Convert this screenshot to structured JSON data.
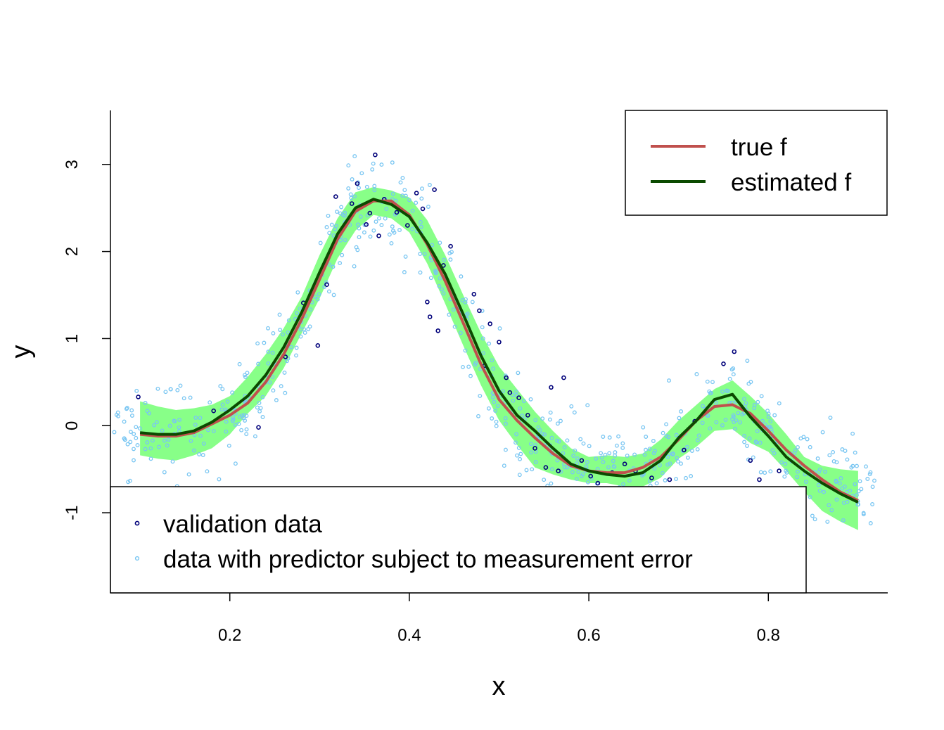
{
  "chart_data": {
    "type": "scatter",
    "xlabel": "x",
    "ylabel": "y",
    "xlim": [
      0.067,
      0.933
    ],
    "ylim": [
      -1.92,
      3.62
    ],
    "x_ticks": [
      {
        "v": 0.2,
        "label": "0.2"
      },
      {
        "v": 0.4,
        "label": "0.4"
      },
      {
        "v": 0.6,
        "label": "0.6"
      },
      {
        "v": 0.8,
        "label": "0.8"
      }
    ],
    "y_ticks": [
      {
        "v": -1,
        "label": "-1"
      },
      {
        "v": 0,
        "label": "0"
      },
      {
        "v": 1,
        "label": "1"
      },
      {
        "v": 2,
        "label": "2"
      },
      {
        "v": 3,
        "label": "3"
      }
    ],
    "colors": {
      "band": "#88FF88",
      "true_f": "#C0504D",
      "estimated_f": "#0B4A00",
      "validation": "#00007A",
      "error_data": "#79C6F2"
    },
    "legend_lines": {
      "position": "top-right",
      "items": [
        {
          "key": "true_f",
          "label": "true f"
        },
        {
          "key": "estimated_f",
          "label": "estimated f"
        }
      ]
    },
    "legend_points": {
      "position": "bottom-left",
      "items": [
        {
          "key": "validation",
          "label": "validation data"
        },
        {
          "key": "error_data",
          "label": "data with predictor subject to measurement error"
        }
      ]
    },
    "curve_x": [
      0.1,
      0.12,
      0.14,
      0.16,
      0.18,
      0.2,
      0.22,
      0.24,
      0.26,
      0.28,
      0.3,
      0.32,
      0.34,
      0.36,
      0.38,
      0.4,
      0.42,
      0.44,
      0.46,
      0.48,
      0.5,
      0.52,
      0.54,
      0.56,
      0.58,
      0.6,
      0.62,
      0.64,
      0.66,
      0.68,
      0.7,
      0.72,
      0.74,
      0.76,
      0.78,
      0.8,
      0.82,
      0.84,
      0.86,
      0.88,
      0.9
    ],
    "true_f": [
      -0.1,
      -0.12,
      -0.12,
      -0.08,
      0.02,
      0.12,
      0.26,
      0.5,
      0.82,
      1.22,
      1.68,
      2.14,
      2.46,
      2.58,
      2.58,
      2.42,
      2.08,
      1.66,
      1.18,
      0.7,
      0.3,
      0.06,
      -0.14,
      -0.32,
      -0.46,
      -0.52,
      -0.54,
      -0.54,
      -0.48,
      -0.36,
      -0.16,
      0.06,
      0.22,
      0.24,
      0.14,
      -0.06,
      -0.28,
      -0.46,
      -0.62,
      -0.76,
      -0.86
    ],
    "estimated_f": [
      -0.08,
      -0.1,
      -0.1,
      -0.06,
      0.04,
      0.18,
      0.34,
      0.58,
      0.9,
      1.3,
      1.76,
      2.2,
      2.5,
      2.6,
      2.54,
      2.4,
      2.1,
      1.74,
      1.28,
      0.8,
      0.4,
      0.12,
      -0.06,
      -0.26,
      -0.44,
      -0.52,
      -0.56,
      -0.58,
      -0.54,
      -0.4,
      -0.14,
      0.06,
      0.3,
      0.36,
      0.1,
      -0.12,
      -0.36,
      -0.52,
      -0.66,
      -0.78,
      -0.88
    ],
    "band_upper": [
      0.28,
      0.22,
      0.18,
      0.2,
      0.24,
      0.34,
      0.56,
      0.82,
      1.12,
      1.48,
      1.96,
      2.38,
      2.68,
      2.74,
      2.7,
      2.62,
      2.36,
      1.96,
      1.5,
      1.06,
      0.68,
      0.42,
      0.16,
      -0.06,
      -0.26,
      -0.36,
      -0.34,
      -0.36,
      -0.32,
      -0.16,
      0.06,
      0.24,
      0.42,
      0.52,
      0.34,
      0.14,
      -0.1,
      -0.36,
      -0.46,
      -0.5,
      -0.52
    ],
    "band_lower": [
      -0.34,
      -0.38,
      -0.4,
      -0.34,
      -0.26,
      -0.1,
      0.14,
      0.34,
      0.66,
      1.06,
      1.46,
      1.92,
      2.24,
      2.42,
      2.38,
      2.22,
      1.86,
      1.4,
      0.92,
      0.46,
      0.06,
      -0.22,
      -0.48,
      -0.56,
      -0.62,
      -0.66,
      -0.66,
      -0.7,
      -0.7,
      -0.6,
      -0.38,
      -0.24,
      -0.06,
      -0.04,
      -0.2,
      -0.3,
      -0.52,
      -0.76,
      -0.98,
      -1.1,
      -1.2
    ],
    "validation_x": [
      0.098,
      0.182,
      0.232,
      0.262,
      0.282,
      0.298,
      0.308,
      0.318,
      0.336,
      0.342,
      0.352,
      0.356,
      0.362,
      0.366,
      0.372,
      0.386,
      0.398,
      0.408,
      0.415,
      0.42,
      0.423,
      0.428,
      0.432,
      0.438,
      0.446,
      0.472,
      0.478,
      0.484,
      0.49,
      0.5,
      0.508,
      0.512,
      0.522,
      0.532,
      0.54,
      0.552,
      0.558,
      0.566,
      0.572,
      0.58,
      0.592,
      0.602,
      0.61,
      0.626,
      0.64,
      0.652,
      0.67,
      0.69,
      0.706,
      0.718,
      0.75,
      0.762,
      0.78,
      0.79,
      0.812
    ],
    "validation_y": [
      0.33,
      0.17,
      -0.02,
      0.79,
      1.41,
      0.92,
      1.62,
      2.63,
      2.55,
      2.78,
      2.31,
      2.44,
      3.11,
      2.18,
      2.6,
      2.45,
      2.3,
      2.67,
      2.49,
      1.42,
      1.25,
      2.71,
      1.09,
      1.84,
      2.06,
      1.51,
      1.32,
      0.69,
      1.17,
      0.96,
      0.55,
      0.38,
      0.32,
      0.12,
      -0.26,
      -0.48,
      0.44,
      -0.52,
      0.55,
      -0.78,
      -0.4,
      -0.58,
      -0.66,
      -0.54,
      -0.44,
      -0.52,
      -0.6,
      -0.62,
      -0.28,
      0.05,
      0.71,
      0.85,
      -0.4,
      -0.62,
      -0.52
    ],
    "error_data": {
      "seed": 7,
      "count": 700,
      "x_range": [
        0.07,
        0.92
      ],
      "note": "light-blue points scatter around the true curve with larger spread"
    }
  }
}
